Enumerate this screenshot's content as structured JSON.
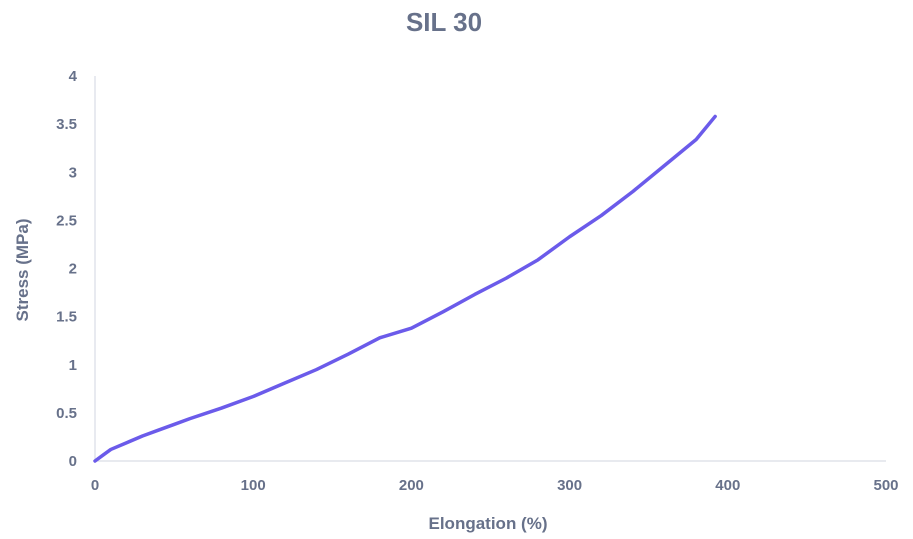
{
  "chart_data": {
    "type": "line",
    "title": "SIL 30",
    "xlabel": "Elongation (%)",
    "ylabel": "Stress (MPa)",
    "xlim": [
      0,
      500
    ],
    "ylim": [
      0,
      4
    ],
    "x_ticks": [
      "0",
      "100",
      "200",
      "300",
      "400",
      "500"
    ],
    "y_ticks": [
      "0",
      "0.5",
      "1",
      "1.5",
      "2",
      "2.5",
      "3",
      "3.5",
      "4"
    ],
    "grid": false,
    "legend": "none",
    "colors": {
      "series": "#6b5bea",
      "text": "#67718a",
      "axis": "#d9dde5"
    },
    "series": [
      {
        "x": [
          0,
          5,
          10,
          20,
          30,
          40,
          50,
          60,
          80,
          100,
          120,
          140,
          160,
          180,
          200,
          220,
          240,
          260,
          280,
          300,
          320,
          340,
          360,
          380,
          392
        ],
        "y": [
          0,
          0.06,
          0.12,
          0.19,
          0.26,
          0.32,
          0.38,
          0.44,
          0.55,
          0.67,
          0.81,
          0.95,
          1.11,
          1.28,
          1.38,
          1.55,
          1.73,
          1.9,
          2.09,
          2.33,
          2.55,
          2.8,
          3.07,
          3.34,
          3.58
        ]
      }
    ]
  }
}
